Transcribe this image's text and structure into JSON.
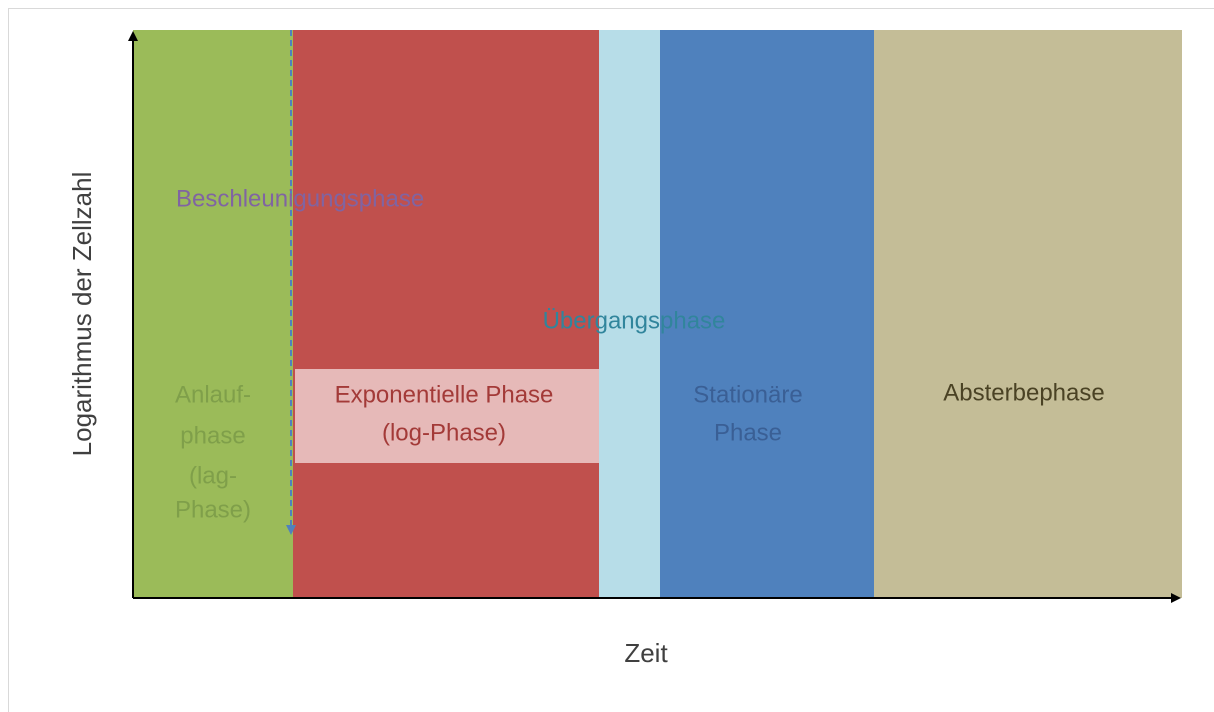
{
  "axes": {
    "x_label": "Zeit",
    "y_label": "Logarithmus der Zellzahl"
  },
  "phases": [
    {
      "lines": [
        "Anlauf-",
        "phase",
        "(lag-",
        "Phase)"
      ]
    },
    {
      "lines": [
        "Exponentielle Phase",
        "(log-Phase)"
      ]
    },
    {
      "lines": [
        "Stationäre",
        "Phase"
      ]
    },
    {
      "lines": [
        "Absterbephase"
      ]
    }
  ],
  "annotations": {
    "acceleration": "Beschleunigungsphase",
    "transition": "Übergangsphase"
  }
}
